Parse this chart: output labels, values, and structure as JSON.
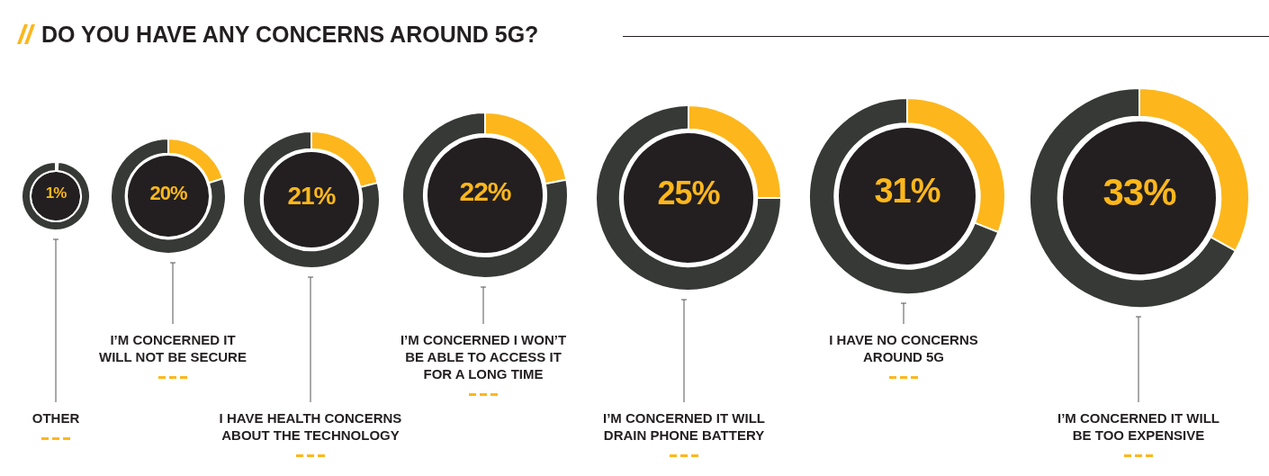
{
  "chart_data": [
    {
      "type": "donut",
      "title": "DO YOU HAVE ANY CONCERNS AROUND 5G?",
      "subtitle": "OTHER",
      "categories": [
        null,
        null
      ],
      "values": [
        1,
        99
      ],
      "colors": [
        "#fdb71c",
        "#363935"
      ],
      "value_labels": [
        "1%",
        null
      ]
    },
    {
      "type": "donut",
      "subtitle": "I’M CONCERNED IT WILL NOT BE SECURE",
      "categories": [
        null,
        null
      ],
      "values": [
        20,
        80
      ],
      "colors": [
        "#fdb71c",
        "#363935"
      ],
      "value_labels": [
        "20%",
        null
      ]
    },
    {
      "type": "donut",
      "subtitle": "I HAVE HEALTH CONCERNS ABOUT THE TECHNOLOGY",
      "categories": [
        null,
        null
      ],
      "values": [
        21,
        79
      ],
      "colors": [
        "#fdb71c",
        "#363935"
      ],
      "value_labels": [
        "21%",
        null
      ]
    },
    {
      "type": "donut",
      "subtitle": "I’M CONCERNED I WON’T BE ABLE TO ACCESS IT FOR A LONG TIME",
      "categories": [
        null,
        null
      ],
      "values": [
        22,
        78
      ],
      "colors": [
        "#fdb71c",
        "#363935"
      ],
      "value_labels": [
        "22%",
        null
      ]
    },
    {
      "type": "donut",
      "subtitle": "I’M CONCERNED IT WILL DRAIN PHONE BATTERY",
      "categories": [
        null,
        null
      ],
      "values": [
        25,
        75
      ],
      "colors": [
        "#fdb71c",
        "#363935"
      ],
      "value_labels": [
        "25%",
        null
      ]
    },
    {
      "type": "donut",
      "subtitle": "I HAVE NO CONCERNS AROUND 5G",
      "categories": [
        null,
        null
      ],
      "values": [
        31,
        69
      ],
      "colors": [
        "#fdb71c",
        "#363935"
      ],
      "value_labels": [
        "31%",
        null
      ]
    },
    {
      "type": "donut",
      "subtitle": "I’M CONCERNED IT WILL BE TOO EXPENSIVE",
      "categories": [
        null,
        null
      ],
      "values": [
        33,
        67
      ],
      "colors": [
        "#fdb71c",
        "#363935"
      ],
      "value_labels": [
        "33%",
        null
      ]
    }
  ]
}
